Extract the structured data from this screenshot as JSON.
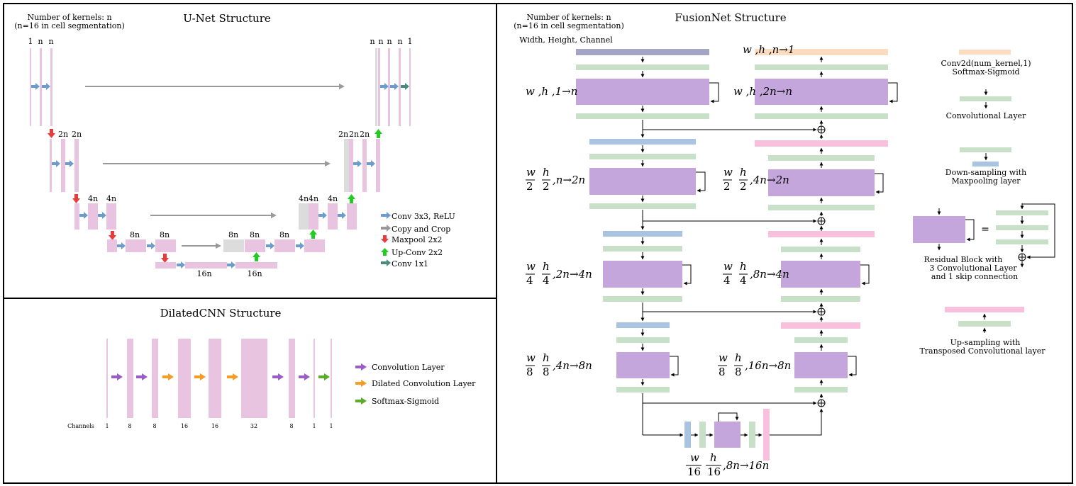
{
  "colors": {
    "conv": "#c8e0c8",
    "res": "#c4a6dc",
    "down": "#a8c4e0",
    "up": "#f8c0dc",
    "final": "#fcdcc0",
    "input": "#a4a4c4",
    "unet_layer": "#e8c4e0",
    "copy": "#dcdcdc",
    "arrow_blue": "#6c9ccc",
    "arrow_gray": "#999999",
    "arrow_red": "#e83c3c",
    "arrow_green": "#22cc22",
    "arrow_teal": "#4a8c7c",
    "purple_arrow": "#9c5cc8",
    "orange_arrow": "#f49c24",
    "green_arrow": "#5cac2c"
  },
  "unet": {
    "title": "U-Net Structure",
    "kernels_line1": "Number of kernels: n",
    "kernels_line2": "(n=16 in cell segmentation)",
    "labels": {
      "l1_left": [
        "1",
        "n",
        "n"
      ],
      "l1_right": [
        "n",
        "n",
        "n",
        "n",
        "1"
      ],
      "l2_left": [
        "2n",
        "2n"
      ],
      "l2_right": [
        "2n",
        "2n",
        "2n"
      ],
      "l3_left": [
        "4n",
        "4n"
      ],
      "l3_right": [
        "4n",
        "4n",
        "4n"
      ],
      "l4": [
        "8n",
        "8n",
        "8n",
        "8n",
        "8n"
      ],
      "l5": [
        "16n",
        "16n"
      ]
    },
    "legend": [
      {
        "icon": "blue-arrow-icon",
        "label": "Conv 3x3, ReLU"
      },
      {
        "icon": "gray-arrow-icon",
        "label": "Copy and Crop"
      },
      {
        "icon": "red-down-arrow-icon",
        "label": "Maxpool 2x2"
      },
      {
        "icon": "green-up-arrow-icon",
        "label": "Up-Conv 2x2"
      },
      {
        "icon": "teal-arrow-icon",
        "label": "Conv 1x1"
      }
    ]
  },
  "dilated": {
    "title": "DilatedCNN Structure",
    "channels_label": "Channels",
    "channels": [
      "1",
      "8",
      "8",
      "16",
      "16",
      "32",
      "8",
      "1",
      "1"
    ],
    "legend": [
      {
        "icon": "purple-arrow-icon",
        "label": "Convolution Layer"
      },
      {
        "icon": "orange-arrow-icon",
        "label": "Dilated Convolution Layer"
      },
      {
        "icon": "green-arrow-icon",
        "label": "Softmax-Sigmoid"
      }
    ]
  },
  "fusionnet": {
    "title": "FusionNet Structure",
    "kernels_line1": "Number of kernels: n",
    "kernels_line2": "(n=16 in cell segmentation)",
    "whc_label": "Width, Height, Channel",
    "enc1": {
      "prefix": "w ,h ,1",
      "suffix": "n"
    },
    "dec1_top": {
      "prefix": "w ,h ,n",
      "suffix": "1"
    },
    "dec1": {
      "prefix": "w ,h ,2n",
      "suffix": "n"
    },
    "frac2": {
      "den": "2",
      "enc_a": ",n",
      "enc_b": "2n",
      "dec_a": ",4n",
      "dec_b": "2n"
    },
    "frac4": {
      "den": "4",
      "enc_a": ",2n",
      "enc_b": "4n",
      "dec_a": ",8n",
      "dec_b": "4n"
    },
    "frac8": {
      "den": "8",
      "enc_a": ",4n",
      "enc_b": "8n",
      "dec_a": ",16n",
      "dec_b": "8n"
    },
    "frac16": {
      "den": "16",
      "a": ",8n",
      "b": "16n"
    },
    "w": "w",
    "h": "h",
    "legend": {
      "final_l1": "Conv2d(num_kernel,1)",
      "final_l2": "Softmax-Sigmoid",
      "conv": "Convolutional Layer",
      "down_l1": "Down-sampling with",
      "down_l2": "Maxpooling layer",
      "equals": "=",
      "res_l1": "Residual Block with",
      "res_l2": "3 Convolutional Layer",
      "res_l3": "and 1 skip connection",
      "up_l1": "Up-sampling with",
      "up_l2": "Transposed Convolutional layer"
    }
  }
}
